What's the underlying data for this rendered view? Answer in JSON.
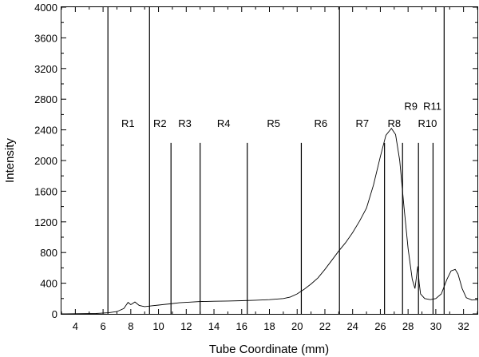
{
  "chart_data": {
    "type": "line",
    "title": "",
    "xlabel": "Tube Coordinate (mm)",
    "ylabel": "Intensity",
    "xlim": [
      3,
      33
    ],
    "ylim": [
      0,
      4000
    ],
    "grid": false,
    "legend": "none",
    "x_ticks": [
      4,
      6,
      8,
      10,
      12,
      14,
      16,
      18,
      20,
      22,
      24,
      26,
      28,
      30,
      32
    ],
    "y_ticks": [
      0,
      400,
      800,
      1200,
      1600,
      2000,
      2400,
      2800,
      3200,
      3600,
      4000
    ],
    "series": [
      {
        "points": [
          [
            3.3,
            0
          ],
          [
            5.5,
            5
          ],
          [
            6.4,
            15
          ],
          [
            7.0,
            30
          ],
          [
            7.5,
            70
          ],
          [
            7.8,
            150
          ],
          [
            8.0,
            120
          ],
          [
            8.3,
            155
          ],
          [
            8.6,
            110
          ],
          [
            9.0,
            95
          ],
          [
            9.5,
            105
          ],
          [
            10.0,
            115
          ],
          [
            10.8,
            130
          ],
          [
            11.5,
            145
          ],
          [
            12.5,
            155
          ],
          [
            13.0,
            160
          ],
          [
            14.0,
            165
          ],
          [
            15.0,
            168
          ],
          [
            16.0,
            172
          ],
          [
            17.0,
            178
          ],
          [
            18.0,
            185
          ],
          [
            19.0,
            200
          ],
          [
            19.5,
            220
          ],
          [
            20.0,
            260
          ],
          [
            20.5,
            320
          ],
          [
            21.0,
            390
          ],
          [
            21.5,
            470
          ],
          [
            22.0,
            580
          ],
          [
            22.5,
            700
          ],
          [
            23.0,
            820
          ],
          [
            23.5,
            930
          ],
          [
            24.0,
            1060
          ],
          [
            24.5,
            1210
          ],
          [
            25.0,
            1380
          ],
          [
            25.5,
            1680
          ],
          [
            26.0,
            2050
          ],
          [
            26.4,
            2330
          ],
          [
            26.8,
            2420
          ],
          [
            27.1,
            2340
          ],
          [
            27.4,
            2000
          ],
          [
            27.7,
            1400
          ],
          [
            28.0,
            850
          ],
          [
            28.3,
            450
          ],
          [
            28.5,
            330
          ],
          [
            28.7,
            620
          ],
          [
            28.8,
            400
          ],
          [
            28.9,
            260
          ],
          [
            29.2,
            200
          ],
          [
            29.6,
            185
          ],
          [
            30.0,
            200
          ],
          [
            30.4,
            260
          ],
          [
            30.8,
            450
          ],
          [
            31.1,
            560
          ],
          [
            31.4,
            580
          ],
          [
            31.6,
            520
          ],
          [
            31.9,
            330
          ],
          [
            32.2,
            210
          ],
          [
            32.6,
            180
          ],
          [
            33.0,
            185
          ]
        ]
      }
    ],
    "region_boundaries": [
      {
        "x": 6.35,
        "ymax": 4000
      },
      {
        "x": 9.35,
        "ymax": 4000
      },
      {
        "x": 10.9,
        "ymax": 2230
      },
      {
        "x": 13.0,
        "ymax": 2230
      },
      {
        "x": 16.4,
        "ymax": 2230
      },
      {
        "x": 20.3,
        "ymax": 2230
      },
      {
        "x": 23.05,
        "ymax": 4000
      },
      {
        "x": 26.3,
        "ymax": 2230
      },
      {
        "x": 27.6,
        "ymax": 2230
      },
      {
        "x": 28.75,
        "ymax": 2230
      },
      {
        "x": 29.8,
        "ymax": 2230
      },
      {
        "x": 30.6,
        "ymax": 4000
      }
    ],
    "region_labels": [
      {
        "text": "R1",
        "x": 7.8,
        "y": 2440
      },
      {
        "text": "R2",
        "x": 10.1,
        "y": 2440
      },
      {
        "text": "R3",
        "x": 11.9,
        "y": 2440
      },
      {
        "text": "R4",
        "x": 14.7,
        "y": 2440
      },
      {
        "text": "R5",
        "x": 18.3,
        "y": 2440
      },
      {
        "text": "R6",
        "x": 21.7,
        "y": 2440
      },
      {
        "text": "R7",
        "x": 24.7,
        "y": 2440
      },
      {
        "text": "R8",
        "x": 27.0,
        "y": 2440
      },
      {
        "text": "R9",
        "x": 28.2,
        "y": 2660
      },
      {
        "text": "R10",
        "x": 29.4,
        "y": 2440
      },
      {
        "text": "R11",
        "x": 29.75,
        "y": 2660
      }
    ]
  }
}
